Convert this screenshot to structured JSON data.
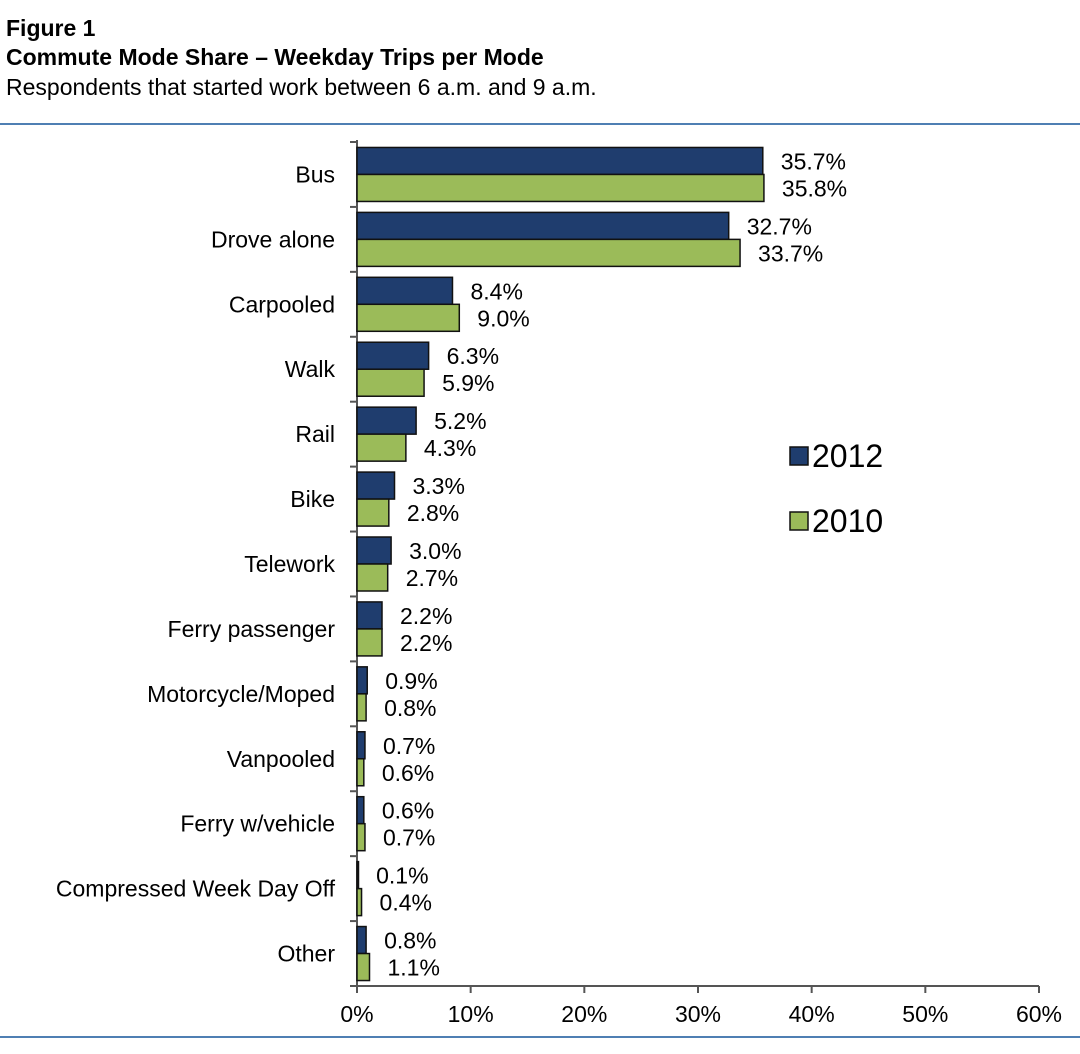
{
  "header": {
    "figure_label": "Figure 1",
    "title": "Commute Mode Share – Weekday Trips per Mode",
    "subtitle": "Respondents that started work between 6 a.m. and 9 a.m."
  },
  "chart_data": {
    "type": "bar",
    "orientation": "horizontal",
    "categories": [
      "Bus",
      "Drove alone",
      "Carpooled",
      "Walk",
      "Rail",
      "Bike",
      "Telework",
      "Ferry passenger",
      "Motorcycle/Moped",
      "Vanpooled",
      "Ferry w/vehicle",
      "Compressed Week Day Off",
      "Other"
    ],
    "series": [
      {
        "name": "2012",
        "color": "#1f3d6e",
        "values": [
          35.7,
          32.7,
          8.4,
          6.3,
          5.2,
          3.3,
          3.0,
          2.2,
          0.9,
          0.7,
          0.6,
          0.1,
          0.8
        ],
        "labels": [
          "35.7%",
          "32.7%",
          "8.4%",
          "6.3%",
          "5.2%",
          "3.3%",
          "3.0%",
          "2.2%",
          "0.9%",
          "0.7%",
          "0.6%",
          "0.1%",
          "0.8%"
        ]
      },
      {
        "name": "2010",
        "color": "#9bbb59",
        "values": [
          35.8,
          33.7,
          9.0,
          5.9,
          4.3,
          2.8,
          2.7,
          2.2,
          0.8,
          0.6,
          0.7,
          0.4,
          1.1
        ],
        "labels": [
          "35.8%",
          "33.7%",
          "9.0%",
          "5.9%",
          "4.3%",
          "2.8%",
          "2.7%",
          "2.2%",
          "0.8%",
          "0.6%",
          "0.7%",
          "0.4%",
          "1.1%"
        ]
      }
    ],
    "xlim": [
      0,
      60
    ],
    "xticks": [
      0,
      10,
      20,
      30,
      40,
      50,
      60
    ],
    "xtick_labels": [
      "0%",
      "10%",
      "20%",
      "30%",
      "40%",
      "50%",
      "60%"
    ],
    "grid": false,
    "legend": "right"
  }
}
